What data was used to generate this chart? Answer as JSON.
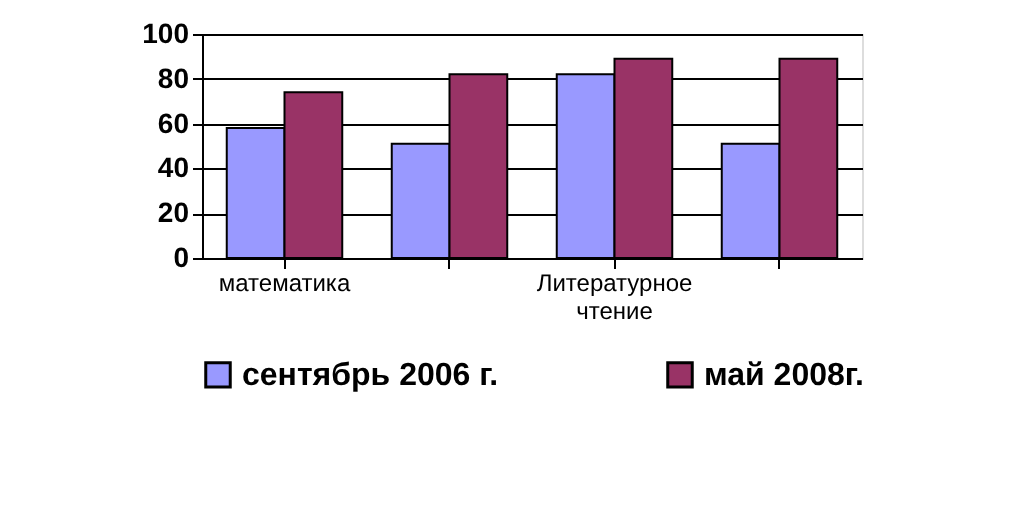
{
  "chart_data": {
    "type": "bar",
    "categories": [
      "математика",
      null,
      "Литературное чтение",
      null
    ],
    "series": [
      {
        "name": "сентябрь 2006 г.",
        "color": "#9999ff",
        "values": [
          58,
          51,
          82,
          51
        ]
      },
      {
        "name": "май 2008г.",
        "color": "#993366",
        "values": [
          74,
          82,
          89,
          89
        ]
      }
    ],
    "ylim": [
      0,
      100
    ],
    "yticks": [
      0,
      20,
      40,
      60,
      80,
      100
    ],
    "grid": "y",
    "legend": "bottom"
  }
}
